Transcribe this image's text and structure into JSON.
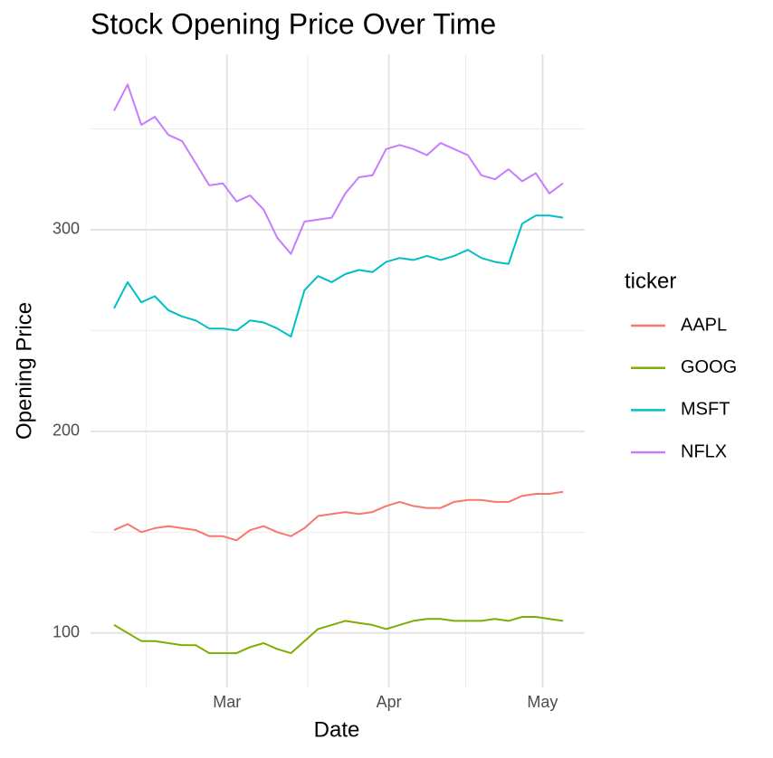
{
  "chart_data": {
    "type": "line",
    "title": "Stock Opening Price Over Time",
    "x_label": "Date",
    "y_label": "Opening Price",
    "legend_title": "ticker",
    "legend_position": "right",
    "grid": true,
    "categories": [
      null,
      null,
      null,
      null,
      null,
      null,
      null,
      null,
      null,
      null,
      null,
      null,
      null,
      null,
      null,
      null,
      null,
      null,
      null,
      null,
      null,
      null,
      null,
      null,
      null,
      null,
      null,
      null,
      null,
      null,
      null,
      null,
      null,
      null
    ],
    "xlim": [
      -1.73,
      34.6
    ],
    "xticks": [
      {
        "value": 8.3,
        "label": "Mar"
      },
      {
        "value": 20.2,
        "label": "Apr"
      },
      {
        "value": 31.5,
        "label": "May"
      }
    ],
    "ylim": [
      73,
      387
    ],
    "yticks": [
      100,
      200,
      300
    ],
    "series": [
      {
        "name": "AAPL",
        "color": "#F8766D",
        "values": [
          151,
          154,
          150,
          152,
          153,
          152,
          151,
          148,
          148,
          146,
          151,
          153,
          150,
          148,
          152,
          158,
          159,
          160,
          159,
          160,
          163,
          165,
          163,
          162,
          162,
          165,
          166,
          166,
          165,
          165,
          168,
          169,
          169,
          170
        ]
      },
      {
        "name": "GOOG",
        "color": "#7CAE00",
        "values": [
          104,
          100,
          96,
          96,
          95,
          94,
          94,
          90,
          90,
          90,
          93,
          95,
          92,
          90,
          96,
          102,
          104,
          106,
          105,
          104,
          102,
          104,
          106,
          107,
          107,
          106,
          106,
          106,
          107,
          106,
          108,
          108,
          107,
          106
        ]
      },
      {
        "name": "MSFT",
        "color": "#00BFC4",
        "values": [
          261,
          274,
          264,
          267,
          260,
          257,
          255,
          251,
          251,
          250,
          255,
          254,
          251,
          247,
          270,
          277,
          274,
          278,
          280,
          279,
          284,
          286,
          285,
          287,
          285,
          287,
          290,
          286,
          284,
          283,
          303,
          307,
          307,
          306
        ]
      },
      {
        "name": "NFLX",
        "color": "#C77CFF",
        "values": [
          359,
          372,
          352,
          356,
          347,
          344,
          333,
          322,
          323,
          314,
          317,
          310,
          296,
          288,
          304,
          305,
          306,
          318,
          326,
          327,
          340,
          342,
          340,
          337,
          343,
          340,
          337,
          327,
          325,
          330,
          324,
          328,
          318,
          323
        ]
      }
    ]
  }
}
